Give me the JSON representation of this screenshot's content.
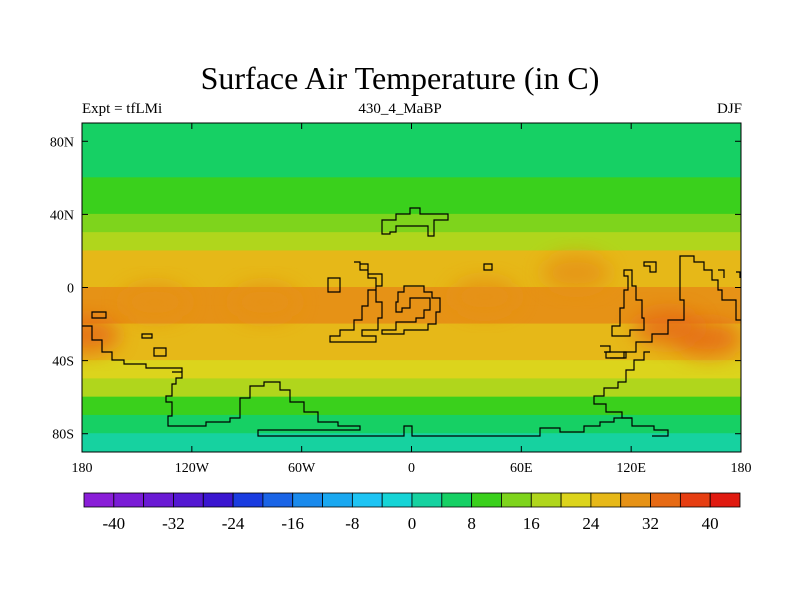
{
  "header": {
    "title": "Surface Air Temperature (in C)",
    "left": "Expt = tfLMi",
    "center": "430_4_MaBP",
    "right": "DJF"
  },
  "chart_data": {
    "type": "heatmap",
    "title": "Surface Air Temperature (in C)",
    "projection": "cylindrical-equidistant",
    "lon_range": [
      -180,
      180
    ],
    "lat_range": [
      -90,
      90
    ],
    "x_ticks": [
      {
        "value": -180,
        "label": "180"
      },
      {
        "value": -120,
        "label": "120W"
      },
      {
        "value": -60,
        "label": "60W"
      },
      {
        "value": 0,
        "label": "0"
      },
      {
        "value": 60,
        "label": "60E"
      },
      {
        "value": 120,
        "label": "120E"
      },
      {
        "value": 180,
        "label": "180"
      }
    ],
    "y_ticks": [
      {
        "value": 80,
        "label": "80N"
      },
      {
        "value": 40,
        "label": "40N"
      },
      {
        "value": 0,
        "label": "0"
      },
      {
        "value": -40,
        "label": "40S"
      },
      {
        "value": -80,
        "label": "80S"
      }
    ],
    "zonal_profile": {
      "lat": [
        90,
        80,
        70,
        60,
        50,
        40,
        30,
        20,
        10,
        0,
        -10,
        -20,
        -30,
        -40,
        -50,
        -60,
        -70,
        -80,
        -90
      ],
      "temp_c": [
        4,
        4,
        6,
        8,
        11,
        13,
        19,
        24,
        27,
        28,
        28,
        27,
        25,
        22,
        17,
        11,
        6,
        2,
        0
      ]
    },
    "colorbar": {
      "colors": [
        "#8a1ed8",
        "#7a1cd6",
        "#6a1ad4",
        "#5418d2",
        "#3a16d0",
        "#1a3ce0",
        "#1a64e6",
        "#1a8aec",
        "#1aa8f0",
        "#1ec4f4",
        "#16d4d6",
        "#16d2a0",
        "#16d064",
        "#3ad01c",
        "#7ed41c",
        "#b0d61c",
        "#dcd41c",
        "#e6b818",
        "#e69216",
        "#e66a14",
        "#e63e12",
        "#e01a10"
      ],
      "tick_values": [
        -40,
        -32,
        -24,
        -16,
        -8,
        0,
        8,
        16,
        24,
        32,
        40
      ],
      "tick_labels": [
        "-40",
        "-32",
        "-24",
        "-16",
        "-8",
        "0",
        "8",
        "16",
        "24",
        "32",
        "40"
      ],
      "min": -44,
      "max": 44
    },
    "hotspots": [
      {
        "lon": -178,
        "lat": -26,
        "temp_c": 35
      },
      {
        "lon": 162,
        "lat": -28,
        "temp_c": 35
      },
      {
        "lon": 140,
        "lat": -22,
        "temp_c": 32
      },
      {
        "lon": -140,
        "lat": -8,
        "temp_c": 31
      },
      {
        "lon": -80,
        "lat": -8,
        "temp_c": 31
      },
      {
        "lon": 40,
        "lat": -5,
        "temp_c": 31
      },
      {
        "lon": 90,
        "lat": 8,
        "temp_c": 30
      }
    ]
  }
}
